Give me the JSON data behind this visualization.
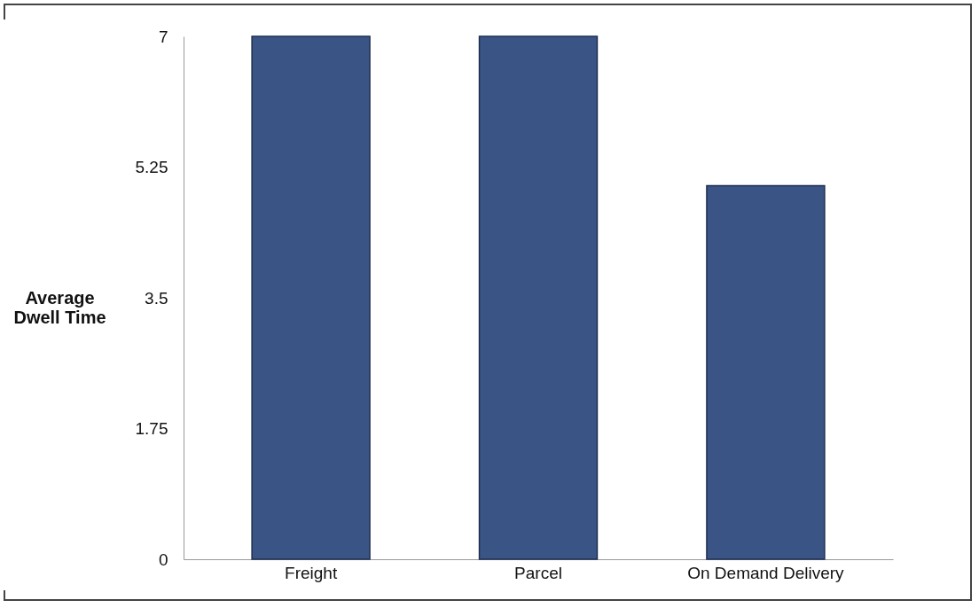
{
  "chart_data": {
    "type": "bar",
    "ylabel": "Average Dwell Time",
    "categories": [
      "Freight",
      "Parcel",
      "On Demand Delivery"
    ],
    "values": [
      7,
      7,
      5
    ],
    "color": "#3a5585",
    "ylim": [
      0,
      7
    ],
    "yticks": [
      0,
      1.75,
      3.5,
      5.25,
      7
    ],
    "grid": false
  }
}
